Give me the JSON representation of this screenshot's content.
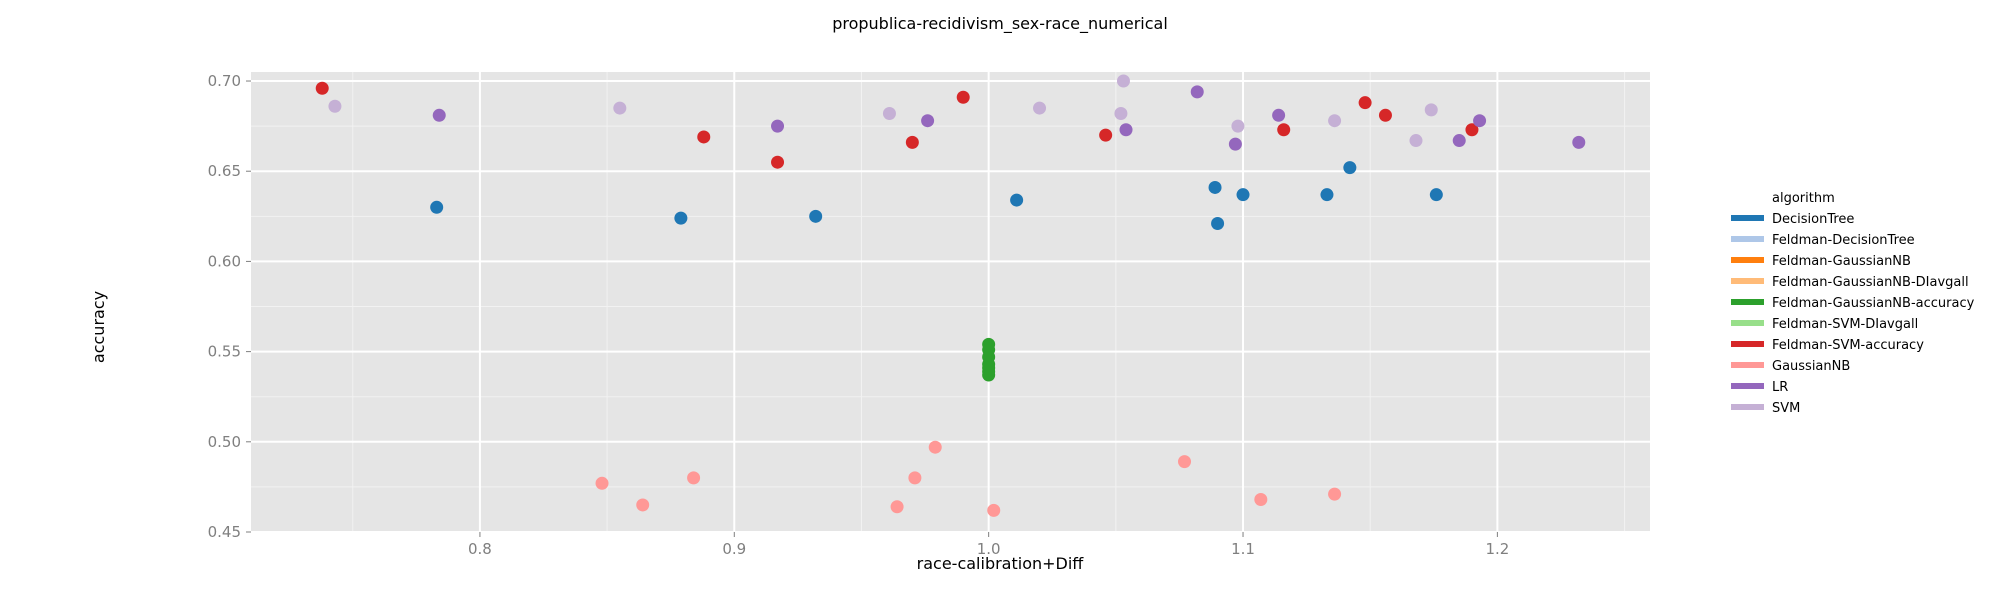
{
  "chart_data": {
    "type": "scatter",
    "title": "propublica-recidivism_sex-race_numerical",
    "xlabel": "race-calibration+Diff",
    "ylabel": "accuracy",
    "xlim": [
      0.71,
      1.26
    ],
    "ylim": [
      0.45,
      0.705
    ],
    "xticks": [
      0.8,
      0.9,
      1.0,
      1.1,
      1.2
    ],
    "xtick_labels": [
      "0.8",
      "0.9",
      "1.0",
      "1.1",
      "1.2"
    ],
    "yticks": [
      0.45,
      0.5,
      0.55,
      0.6,
      0.65,
      0.7
    ],
    "ytick_labels": [
      "0.45",
      "0.50",
      "0.55",
      "0.60",
      "0.65",
      "0.70"
    ],
    "grid": true,
    "legend_title": "algorithm",
    "legend_position": "right",
    "series": [
      {
        "name": "DecisionTree",
        "color": "#1f77b4",
        "x": [
          0.783,
          0.879,
          0.932,
          1.011,
          1.089,
          1.09,
          1.1,
          1.133,
          1.142,
          1.176
        ],
        "y": [
          0.63,
          0.624,
          0.625,
          0.634,
          0.641,
          0.621,
          0.637,
          0.637,
          0.652,
          0.637
        ]
      },
      {
        "name": "Feldman-DecisionTree",
        "color": "#aec7e8",
        "x": [],
        "y": []
      },
      {
        "name": "Feldman-GaussianNB",
        "color": "#ff7f0e",
        "x": [],
        "y": []
      },
      {
        "name": "Feldman-GaussianNB-DIavgall",
        "color": "#ffbb78",
        "x": [],
        "y": []
      },
      {
        "name": "Feldman-GaussianNB-accuracy",
        "color": "#2ca02c",
        "x": [
          1.0,
          1.0,
          1.0,
          1.0,
          1.0,
          1.0,
          1.0
        ],
        "y": [
          0.554,
          0.551,
          0.547,
          0.543,
          0.541,
          0.539,
          0.537
        ]
      },
      {
        "name": "Feldman-SVM-DIavgall",
        "color": "#98df8a",
        "x": [],
        "y": []
      },
      {
        "name": "Feldman-SVM-accuracy",
        "color": "#d62728",
        "x": [
          0.738,
          0.888,
          0.917,
          0.97,
          0.99,
          1.046,
          1.116,
          1.148,
          1.156,
          1.19
        ],
        "y": [
          0.696,
          0.669,
          0.655,
          0.666,
          0.691,
          0.67,
          0.673,
          0.688,
          0.681,
          0.673
        ]
      },
      {
        "name": "GaussianNB",
        "color": "#ff9896",
        "x": [
          0.848,
          0.864,
          0.884,
          0.964,
          0.971,
          0.979,
          1.002,
          1.077,
          1.107,
          1.136
        ],
        "y": [
          0.477,
          0.465,
          0.48,
          0.464,
          0.48,
          0.497,
          0.462,
          0.489,
          0.468,
          0.471
        ]
      },
      {
        "name": "LR",
        "color": "#9467bd",
        "x": [
          0.784,
          0.917,
          0.976,
          1.054,
          1.082,
          1.097,
          1.114,
          1.185,
          1.193,
          1.232
        ],
        "y": [
          0.681,
          0.675,
          0.678,
          0.673,
          0.694,
          0.665,
          0.681,
          0.667,
          0.678,
          0.666
        ]
      },
      {
        "name": "SVM",
        "color": "#c5b0d5",
        "x": [
          0.743,
          0.855,
          0.961,
          1.02,
          1.052,
          1.053,
          1.098,
          1.136,
          1.168,
          1.174
        ],
        "y": [
          0.686,
          0.685,
          0.682,
          0.685,
          0.682,
          0.7,
          0.675,
          0.678,
          0.667,
          0.684
        ]
      }
    ]
  }
}
